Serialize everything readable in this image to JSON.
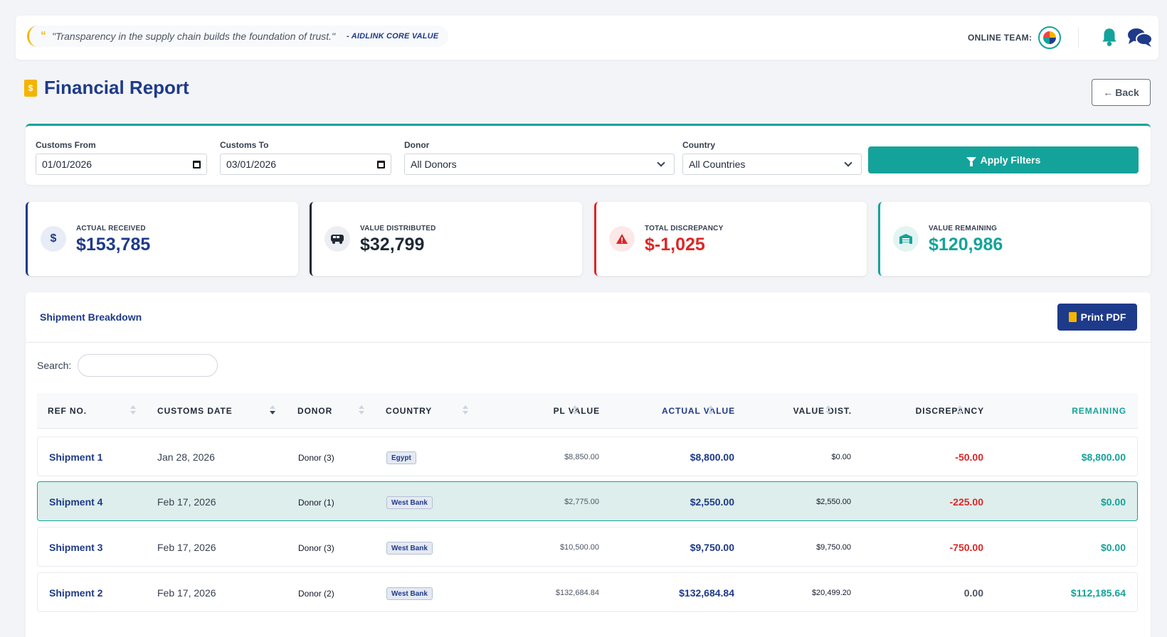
{
  "topbar": {
    "quote_text": "\"Transparency in the supply chain builds the foundation of trust.\"",
    "quote_source": "- AIDLINK CORE VALUE",
    "online_team_label": "ONLINE TEAM:",
    "icons": [
      "quote-icon",
      "team-avatar",
      "bell-icon",
      "chat-icon"
    ]
  },
  "header": {
    "title": "Financial Report",
    "back_label": "Back"
  },
  "filters": {
    "customs_from_label": "Customs From",
    "customs_from_value": "01/01/2026",
    "customs_to_label": "Customs To",
    "customs_to_value": "03/01/2026",
    "donor_label": "Donor",
    "donor_value": "All Donors",
    "country_label": "Country",
    "country_value": "All Countries",
    "apply_label": "Apply Filters"
  },
  "stats": [
    {
      "label": "ACTUAL RECEIVED",
      "value": "$153,785",
      "color": "#1e3a8a",
      "icon": "hand-dollar-icon"
    },
    {
      "label": "VALUE DISTRIBUTED",
      "value": "$32,799",
      "color": "#1f2937",
      "icon": "truck-icon"
    },
    {
      "label": "TOTAL DISCREPANCY",
      "value": "$-1,025",
      "color": "#dc2626",
      "icon": "warning-icon"
    },
    {
      "label": "VALUE REMAINING",
      "value": "$120,986",
      "color": "#14a39a",
      "icon": "warehouse-icon"
    }
  ],
  "breakdown": {
    "title": "Shipment Breakdown",
    "print_label": "Print PDF",
    "search_label": "Search:",
    "columns": [
      "REF NO.",
      "CUSTOMS DATE",
      "DONOR",
      "COUNTRY",
      "PL VALUE",
      "ACTUAL VALUE",
      "VALUE DIST.",
      "DISCREPANCY",
      "REMAINING"
    ],
    "rows": [
      {
        "ref": "Shipment 1",
        "date": "Jan 28, 2026",
        "donor": "Donor (3)",
        "country": "Egypt",
        "pl": "$8,850.00",
        "actual": "$8,800.00",
        "dist": "$0.00",
        "disc": "-50.00",
        "rem": "$8,800.00"
      },
      {
        "ref": "Shipment 4",
        "date": "Feb 17, 2026",
        "donor": "Donor (1)",
        "country": "West Bank",
        "pl": "$2,775.00",
        "actual": "$2,550.00",
        "dist": "$2,550.00",
        "disc": "-225.00",
        "rem": "$0.00"
      },
      {
        "ref": "Shipment 3",
        "date": "Feb 17, 2026",
        "donor": "Donor (3)",
        "country": "West Bank",
        "pl": "$10,500.00",
        "actual": "$9,750.00",
        "dist": "$9,750.00",
        "disc": "-750.00",
        "rem": "$0.00"
      },
      {
        "ref": "Shipment 2",
        "date": "Feb 17, 2026",
        "donor": "Donor (2)",
        "country": "West Bank",
        "pl": "$132,684.84",
        "actual": "$132,684.84",
        "dist": "$20,499.20",
        "disc": "0.00",
        "rem": "$112,185.64"
      }
    ]
  }
}
